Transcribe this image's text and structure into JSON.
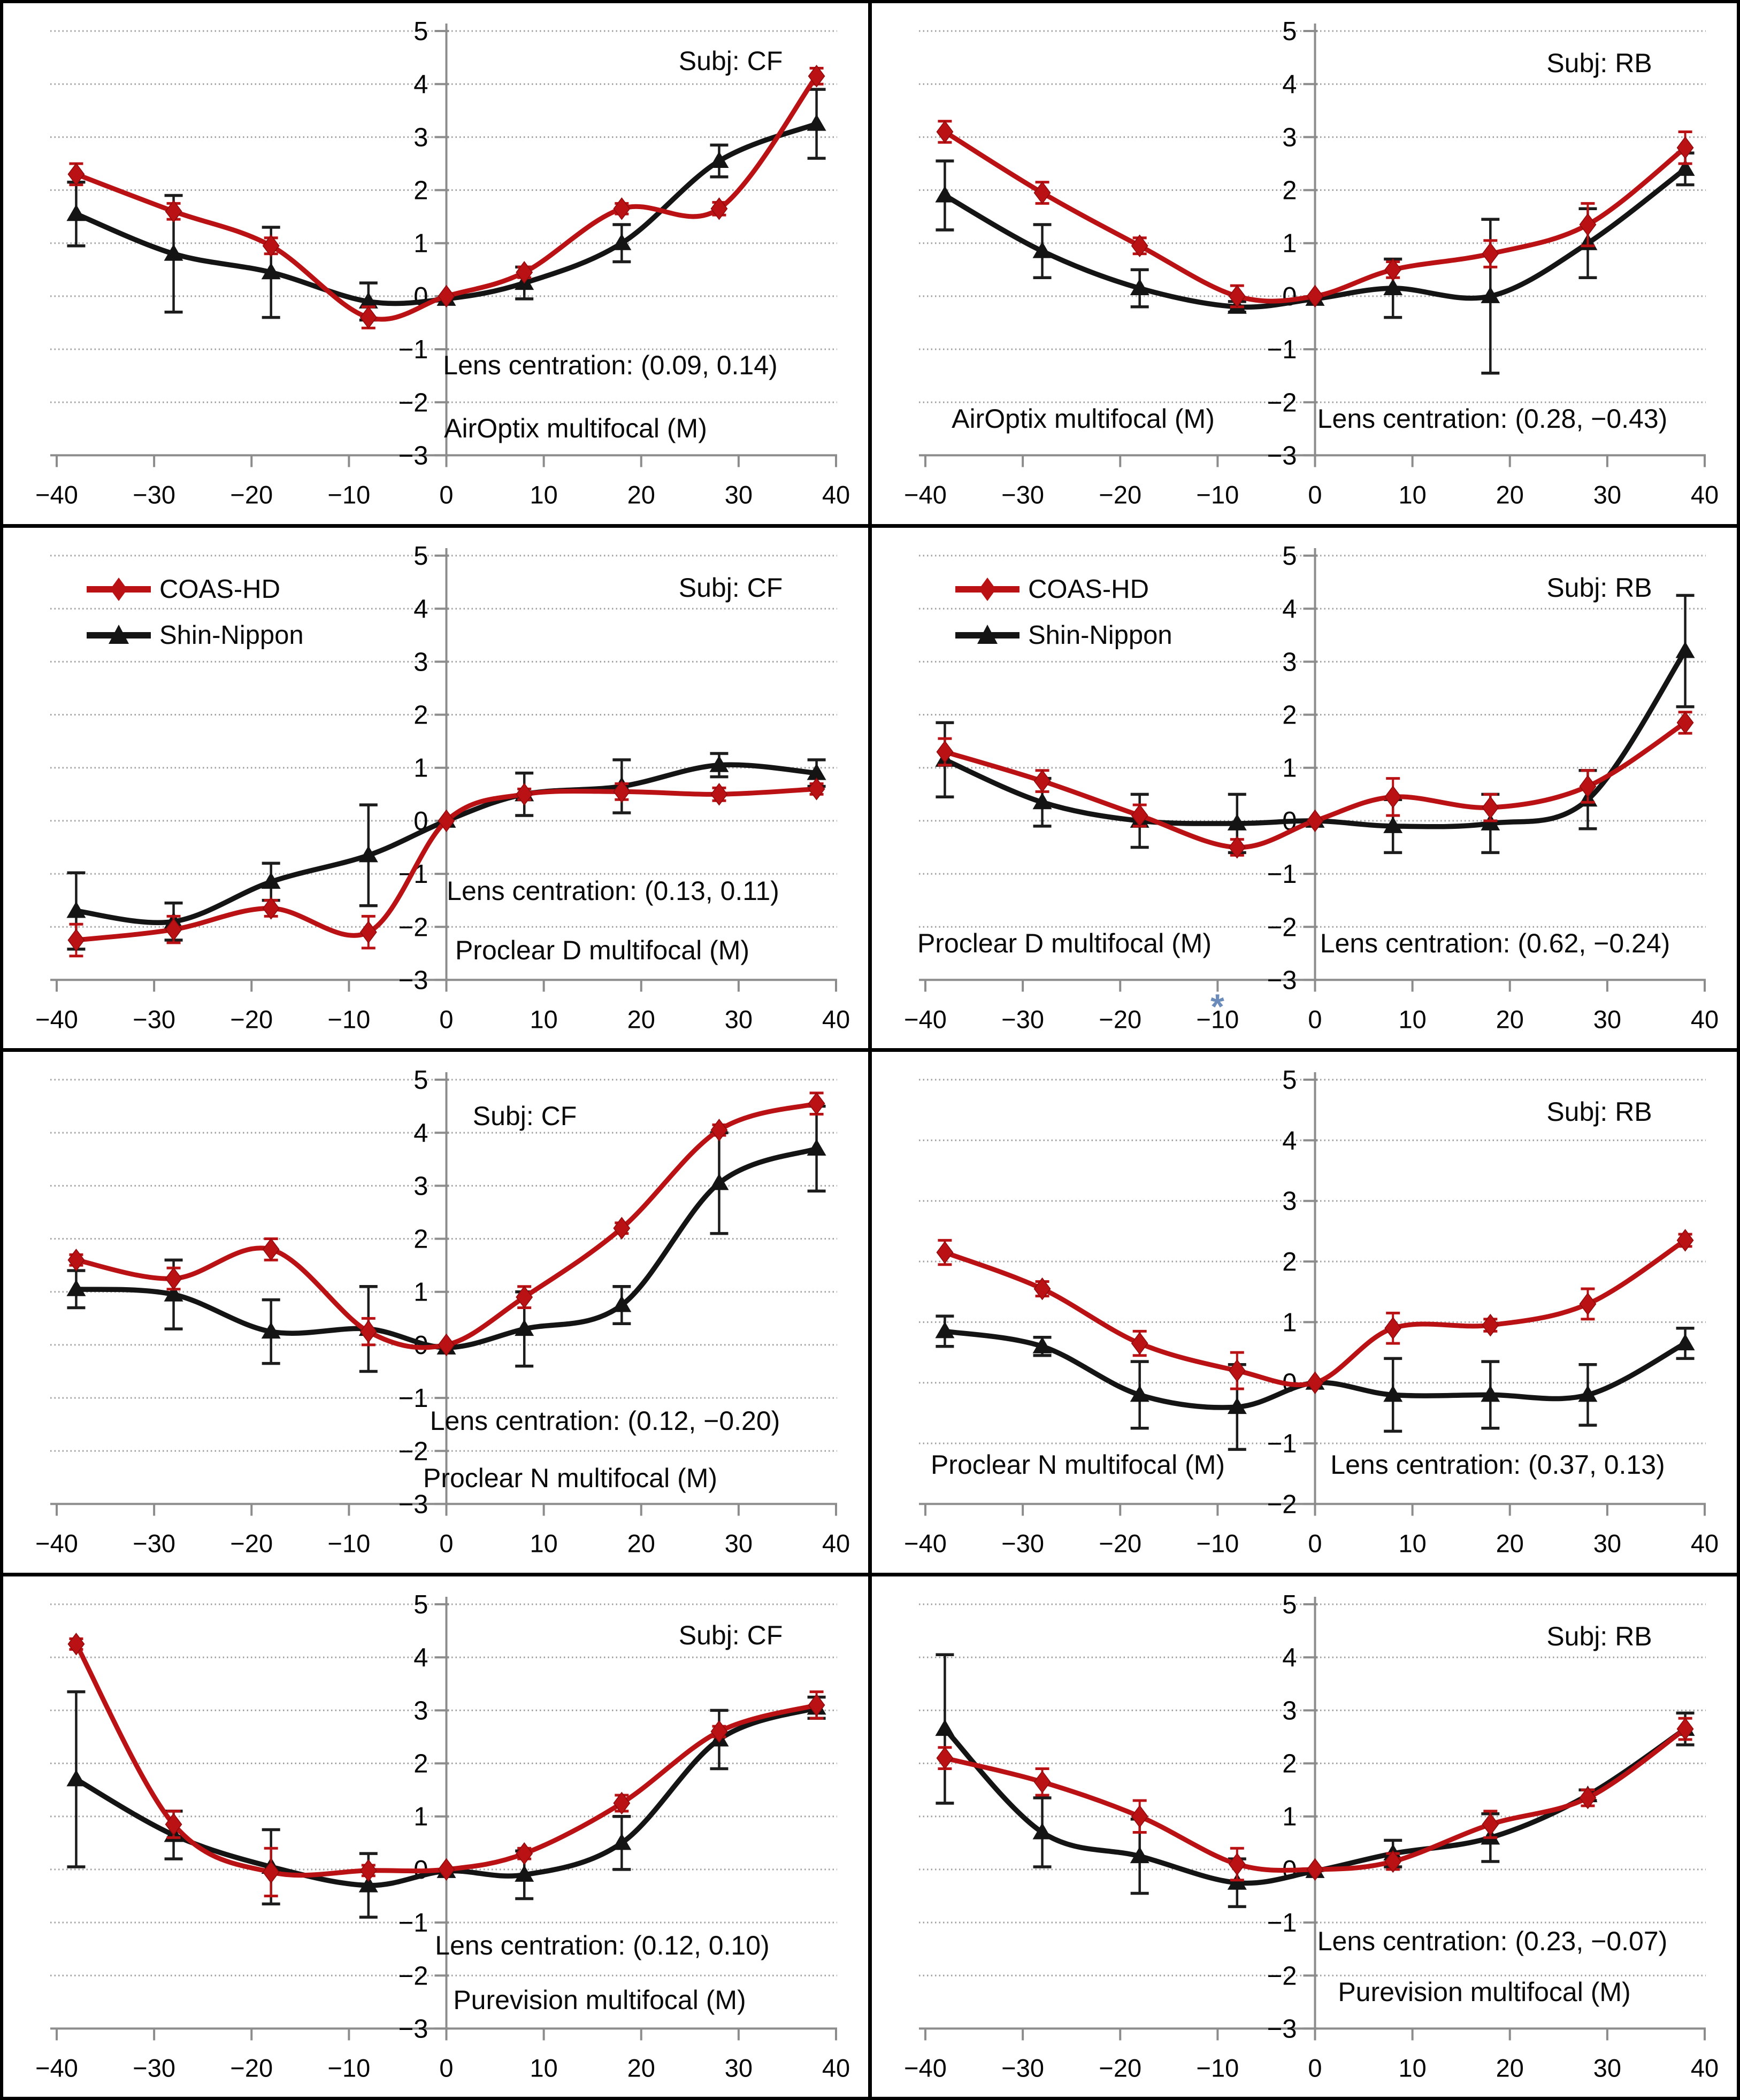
{
  "legend": {
    "note": "legend shown in row-2 panels only"
  },
  "colors": {
    "coas_red": "#b91114",
    "shin_black": "#141414",
    "grid_gray": "#a0a0a0",
    "axis_gray": "#8c8c8c",
    "asterisk_blue": "#6b8cba"
  },
  "axis": {
    "x_ticks": [
      {
        "v": -40,
        "label": "−40"
      },
      {
        "v": -30,
        "label": "−30"
      },
      {
        "v": -20,
        "label": "−20"
      },
      {
        "v": -10,
        "label": "−10"
      },
      {
        "v": 0,
        "label": "0"
      },
      {
        "v": 10,
        "label": "10"
      },
      {
        "v": 20,
        "label": "20"
      },
      {
        "v": 30,
        "label": "30"
      },
      {
        "v": 40,
        "label": "40"
      }
    ],
    "y_ticks": [
      {
        "v": 5,
        "label": "5"
      },
      {
        "v": 4,
        "label": "4"
      },
      {
        "v": 3,
        "label": "3"
      },
      {
        "v": 2,
        "label": "2"
      },
      {
        "v": 1,
        "label": "1"
      },
      {
        "v": 0,
        "label": "0"
      },
      {
        "v": -1,
        "label": "−1"
      },
      {
        "v": -2,
        "label": "−2"
      },
      {
        "v": -3,
        "label": "−3"
      }
    ]
  },
  "chart_data": [
    {
      "type": "line",
      "subject": "Subj: CF",
      "lens": "AirOptix multifocal (M)",
      "centration": "Lens centration: (0.09, 0.14)",
      "ylim": [
        -3,
        5
      ],
      "x": [
        -38,
        -28,
        -18,
        -8,
        0,
        8,
        18,
        28,
        38
      ],
      "series": [
        {
          "name": "COAS-HD",
          "values": [
            2.3,
            1.6,
            0.95,
            -0.4,
            0,
            0.45,
            1.65,
            1.65,
            4.15
          ],
          "errors": [
            0.2,
            0.15,
            0.15,
            0.2,
            0.05,
            0.1,
            0.1,
            0.12,
            0.15
          ]
        },
        {
          "name": "Shin-Nippon",
          "values": [
            1.55,
            0.8,
            0.45,
            -0.1,
            -0.05,
            0.25,
            1.0,
            2.55,
            3.25
          ],
          "errors": [
            0.6,
            1.1,
            0.85,
            0.35,
            0.05,
            0.3,
            0.35,
            0.3,
            0.65
          ]
        }
      ]
    },
    {
      "type": "line",
      "subject": "Subj: RB",
      "lens": "AirOptix multifocal (M)",
      "centration": "Lens centration: (0.28, −0.43)",
      "ylim": [
        -3,
        5
      ],
      "x": [
        -38,
        -28,
        -18,
        -8,
        0,
        8,
        18,
        28,
        38
      ],
      "series": [
        {
          "name": "COAS-HD",
          "values": [
            3.1,
            1.95,
            0.95,
            0.0,
            0,
            0.5,
            0.8,
            1.35,
            2.8
          ],
          "errors": [
            0.2,
            0.2,
            0.15,
            0.2,
            0.05,
            0.15,
            0.25,
            0.4,
            0.3
          ]
        },
        {
          "name": "Shin-Nippon",
          "values": [
            1.9,
            0.85,
            0.15,
            -0.2,
            -0.05,
            0.15,
            0.0,
            1.0,
            2.4
          ],
          "errors": [
            0.65,
            0.5,
            0.35,
            0.1,
            0.05,
            0.55,
            1.45,
            0.65,
            0.3
          ]
        }
      ]
    },
    {
      "type": "line",
      "subject": "Subj: CF",
      "lens": "Proclear D multifocal (M)",
      "centration": "Lens centration: (0.13, 0.11)",
      "ylim": [
        -3,
        5
      ],
      "has_legend": true,
      "x": [
        -38,
        -28,
        -18,
        -8,
        0,
        8,
        18,
        28,
        38
      ],
      "series": [
        {
          "name": "COAS-HD",
          "values": [
            -2.25,
            -2.05,
            -1.65,
            -2.1,
            0,
            0.5,
            0.55,
            0.5,
            0.6
          ],
          "errors": [
            0.3,
            0.25,
            0.15,
            0.3,
            0.05,
            0.1,
            0.15,
            0.12,
            0.1
          ]
        },
        {
          "name": "Shin-Nippon",
          "values": [
            -1.7,
            -1.9,
            -1.15,
            -0.65,
            0,
            0.5,
            0.65,
            1.05,
            0.9
          ],
          "errors": [
            0.72,
            0.35,
            0.35,
            0.95,
            0.05,
            0.4,
            0.5,
            0.22,
            0.25
          ]
        }
      ]
    },
    {
      "type": "line",
      "subject": "Subj: RB",
      "lens": "Proclear D multifocal (M)",
      "centration": "Lens centration: (0.62, −0.24)",
      "ylim": [
        -3,
        5
      ],
      "has_legend": true,
      "annotation": {
        "text": "*",
        "x_value": -10
      },
      "x": [
        -38,
        -28,
        -18,
        -8,
        0,
        8,
        18,
        28,
        38
      ],
      "series": [
        {
          "name": "COAS-HD",
          "values": [
            1.3,
            0.75,
            0.1,
            -0.5,
            0,
            0.45,
            0.25,
            0.65,
            1.85
          ],
          "errors": [
            0.25,
            0.2,
            0.2,
            0.15,
            0.05,
            0.35,
            0.25,
            0.3,
            0.2
          ]
        },
        {
          "name": "Shin-Nippon",
          "values": [
            1.15,
            0.35,
            0.0,
            -0.05,
            0,
            -0.1,
            -0.05,
            0.4,
            3.2
          ],
          "errors": [
            0.7,
            0.45,
            0.5,
            0.55,
            0.05,
            0.5,
            0.55,
            0.55,
            1.05
          ]
        }
      ]
    },
    {
      "type": "line",
      "subject": "Subj: CF",
      "lens": "Proclear N multifocal (M)",
      "centration": "Lens centration: (0.12, −0.20)",
      "ylim": [
        -3,
        5
      ],
      "x": [
        -38,
        -28,
        -18,
        -8,
        0,
        8,
        18,
        28,
        38
      ],
      "series": [
        {
          "name": "COAS-HD",
          "values": [
            1.6,
            1.25,
            1.8,
            0.25,
            0,
            0.9,
            2.2,
            4.05,
            4.55
          ],
          "errors": [
            0.1,
            0.2,
            0.2,
            0.25,
            0.05,
            0.2,
            0.1,
            0.1,
            0.2
          ]
        },
        {
          "name": "Shin-Nippon",
          "values": [
            1.05,
            0.95,
            0.25,
            0.3,
            -0.05,
            0.3,
            0.75,
            3.05,
            3.7
          ],
          "errors": [
            0.35,
            0.65,
            0.6,
            0.8,
            0.05,
            0.7,
            0.35,
            0.95,
            0.8
          ]
        }
      ]
    },
    {
      "type": "line",
      "subject": "Subj: RB",
      "lens": "Proclear N multifocal (M)",
      "centration": "Lens centration: (0.37, 0.13)",
      "ylim": [
        -2,
        5
      ],
      "x": [
        -38,
        -28,
        -18,
        -8,
        0,
        8,
        18,
        28,
        38
      ],
      "series": [
        {
          "name": "COAS-HD",
          "values": [
            2.15,
            1.55,
            0.65,
            0.2,
            0,
            0.9,
            0.95,
            1.3,
            2.35
          ],
          "errors": [
            0.2,
            0.12,
            0.2,
            0.3,
            0.05,
            0.25,
            0.1,
            0.25,
            0.1
          ]
        },
        {
          "name": "Shin-Nippon",
          "values": [
            0.85,
            0.6,
            -0.2,
            -0.4,
            0,
            -0.2,
            -0.2,
            -0.2,
            0.65
          ],
          "errors": [
            0.25,
            0.15,
            0.55,
            0.7,
            0.05,
            0.6,
            0.55,
            0.5,
            0.25
          ]
        }
      ]
    },
    {
      "type": "line",
      "subject": "Subj: CF",
      "lens": "Purevision multifocal (M)",
      "centration": "Lens centration: (0.12, 0.10)",
      "ylim": [
        -3,
        5
      ],
      "x": [
        -38,
        -28,
        -18,
        -8,
        0,
        8,
        18,
        28,
        38
      ],
      "series": [
        {
          "name": "COAS-HD",
          "values": [
            4.25,
            0.85,
            -0.05,
            -0.02,
            0,
            0.3,
            1.25,
            2.6,
            3.1
          ],
          "errors": [
            0.1,
            0.25,
            0.45,
            0.1,
            0.05,
            0.1,
            0.15,
            0.1,
            0.25
          ]
        },
        {
          "name": "Shin-Nippon",
          "values": [
            1.7,
            0.65,
            0.05,
            -0.3,
            -0.03,
            -0.1,
            0.5,
            2.45,
            3.05
          ],
          "errors": [
            1.65,
            0.45,
            0.7,
            0.6,
            0.05,
            0.45,
            0.5,
            0.55,
            0.2
          ]
        }
      ]
    },
    {
      "type": "line",
      "subject": "Subj: RB",
      "lens": "Purevision multifocal (M)",
      "centration": "Lens centration: (0.23, −0.07)",
      "ylim": [
        -3,
        5
      ],
      "x": [
        -38,
        -28,
        -18,
        -8,
        0,
        8,
        18,
        28,
        38
      ],
      "series": [
        {
          "name": "COAS-HD",
          "values": [
            2.1,
            1.65,
            1.0,
            0.1,
            0,
            0.15,
            0.85,
            1.35,
            2.65
          ],
          "errors": [
            0.2,
            0.25,
            0.3,
            0.3,
            0.05,
            0.15,
            0.25,
            0.15,
            0.2
          ]
        },
        {
          "name": "Shin-Nippon",
          "values": [
            2.65,
            0.7,
            0.25,
            -0.25,
            -0.03,
            0.3,
            0.6,
            1.4,
            2.65
          ],
          "errors": [
            1.4,
            0.65,
            0.7,
            0.45,
            0.05,
            0.25,
            0.45,
            0.1,
            0.3
          ]
        }
      ]
    }
  ]
}
